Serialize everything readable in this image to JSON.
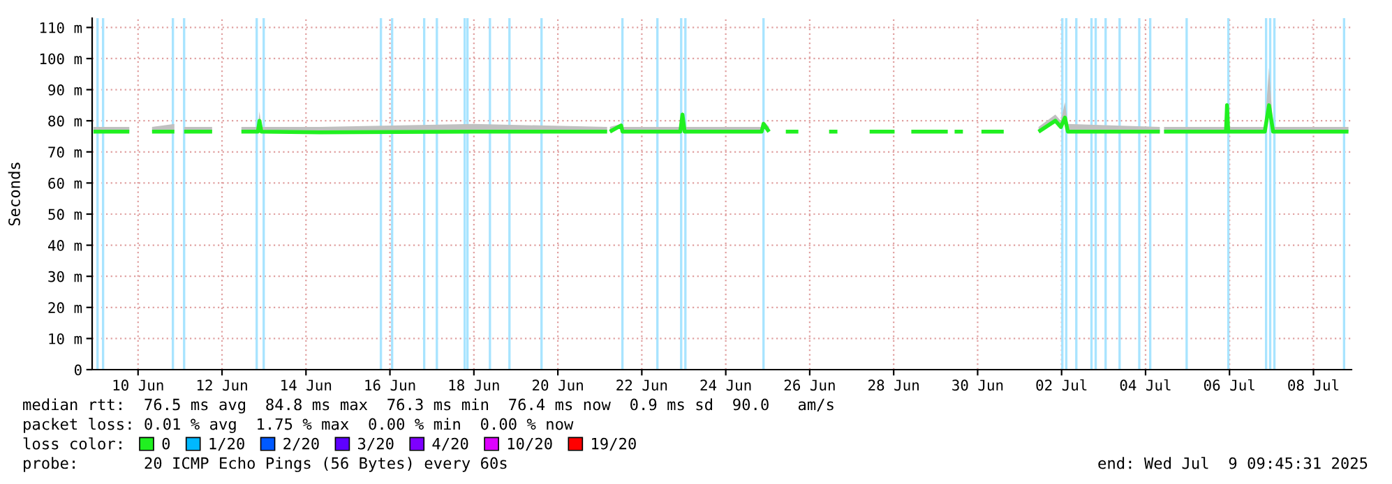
{
  "chart_data": {
    "type": "line",
    "ylabel": "Seconds",
    "ylim": [
      0,
      113
    ],
    "yticks": [
      0,
      {
        "value": 10,
        "label": "10 m"
      },
      {
        "value": 20,
        "label": "20 m"
      },
      {
        "value": 30,
        "label": "30 m"
      },
      {
        "value": 40,
        "label": "40 m"
      },
      {
        "value": 50,
        "label": "50 m"
      },
      {
        "value": 60,
        "label": "60 m"
      },
      {
        "value": 70,
        "label": "70 m"
      },
      {
        "value": 80,
        "label": "80 m"
      },
      {
        "value": 90,
        "label": "90 m"
      },
      {
        "value": 100,
        "label": "100 m"
      },
      {
        "value": 110,
        "label": "110 m"
      }
    ],
    "xlim": [
      "2025-06-09T09:45",
      "2025-07-09T09:45"
    ],
    "xticks": [
      {
        "value": "2025-06-10T12:00",
        "label": "10 Jun"
      },
      {
        "value": "2025-06-12T12:00",
        "label": "12 Jun"
      },
      {
        "value": "2025-06-14T12:00",
        "label": "14 Jun"
      },
      {
        "value": "2025-06-16T12:00",
        "label": "16 Jun"
      },
      {
        "value": "2025-06-18T12:00",
        "label": "18 Jun"
      },
      {
        "value": "2025-06-20T12:00",
        "label": "20 Jun"
      },
      {
        "value": "2025-06-22T12:00",
        "label": "22 Jun"
      },
      {
        "value": "2025-06-24T12:00",
        "label": "24 Jun"
      },
      {
        "value": "2025-06-26T12:00",
        "label": "26 Jun"
      },
      {
        "value": "2025-06-28T12:00",
        "label": "28 Jun"
      },
      {
        "value": "2025-06-30T12:00",
        "label": "30 Jun"
      },
      {
        "value": "2025-07-02T12:00",
        "label": "02 Jul"
      },
      {
        "value": "2025-07-04T12:00",
        "label": "04 Jul"
      },
      {
        "value": "2025-07-06T12:00",
        "label": "06 Jul"
      },
      {
        "value": "2025-07-08T12:00",
        "label": "08 Jul"
      }
    ],
    "grid": true,
    "legend": "bottom",
    "legend_title": "loss color:",
    "x": [
      "2025-06-09T10:30",
      "2025-06-10T07:00",
      "2025-06-10T13:00",
      "2025-06-10T20:00",
      "2025-06-11T08:45",
      "2025-06-11T11:00",
      "2025-06-11T14:20",
      "2025-06-12T06:20",
      "2025-06-12T15:00",
      "2025-06-12T23:05",
      "2025-06-13T08:30",
      "2025-06-13T09:25",
      "2025-06-13T10:30",
      "2025-06-14T19:45",
      "2025-06-18T12:00",
      "2025-06-21T16:10",
      "2025-06-21T17:00",
      "2025-06-21T17:45",
      "2025-06-22T00:10",
      "2025-06-22T01:00",
      "2025-06-23T10:00",
      "2025-06-23T11:15",
      "2025-06-23T12:30",
      "2025-06-25T08:30",
      "2025-06-25T09:35",
      "2025-06-25T12:45",
      "2025-06-25T17:00",
      "2025-06-25T22:20",
      "2025-06-26T05:30",
      "2025-06-26T14:00",
      "2025-06-26T23:05",
      "2025-06-27T03:50",
      "2025-06-27T13:00",
      "2025-06-27T22:15",
      "2025-06-28T12:30",
      "2025-06-28T17:00",
      "2025-06-28T22:05",
      "2025-06-29T18:55",
      "2025-06-29T21:00",
      "2025-06-29T22:50",
      "2025-06-30T03:35",
      "2025-06-30T09:00",
      "2025-06-30T14:10",
      "2025-07-01T02:55",
      "2025-07-01T12:00",
      "2025-07-01T22:50",
      "2025-07-02T08:25",
      "2025-07-02T11:35",
      "2025-07-02T13:55",
      "2025-07-02T15:35",
      "2025-07-04T20:10",
      "2025-07-04T21:30",
      "2025-07-04T22:35",
      "2025-07-06T10:00",
      "2025-07-06T10:35",
      "2025-07-06T11:15",
      "2025-07-07T08:10",
      "2025-07-07T10:35",
      "2025-07-07T12:55",
      "2025-07-09T08:00"
    ],
    "series": [
      {
        "name": "0",
        "color": "#20f020",
        "values": [
          76.5,
          76.5,
          null,
          76.5,
          76.5,
          null,
          76.5,
          76.5,
          null,
          76.5,
          76.5,
          80,
          76.5,
          76.3,
          76.5,
          76.5,
          null,
          76.5,
          78.5,
          76.5,
          76.5,
          82,
          76.5,
          76.5,
          79,
          76.5,
          null,
          76.5,
          76.5,
          null,
          76.5,
          76.5,
          null,
          76.5,
          76.5,
          null,
          76.5,
          76.5,
          null,
          76.5,
          76.5,
          null,
          76.5,
          76.5,
          null,
          76.5,
          80,
          78,
          81,
          76.5,
          76.5,
          null,
          76.5,
          76.5,
          85,
          76.5,
          76.5,
          85,
          76.5,
          76.5
        ],
        "lower": [
          76.5,
          76.5,
          null,
          76.5,
          76.5,
          null,
          76.5,
          76.5,
          null,
          76.5,
          76.5,
          80,
          76.5,
          76.3,
          76.5,
          76.5,
          null,
          76.5,
          78.5,
          76.5,
          76.5,
          82,
          76.5,
          76.5,
          79,
          76.5,
          null,
          null,
          null,
          null,
          null,
          null,
          null,
          null,
          null,
          null,
          null,
          null,
          null,
          null,
          null,
          null,
          null,
          null,
          null,
          76.5,
          80,
          78,
          81,
          76.5,
          76.5,
          null,
          76.5,
          76.5,
          85,
          76.5,
          76.5,
          85,
          76.5,
          76.5
        ],
        "upper": [
          78,
          78,
          null,
          78,
          79,
          null,
          78,
          78,
          null,
          78,
          78,
          83,
          78,
          78,
          79,
          78,
          null,
          78,
          79,
          78,
          78,
          83,
          78,
          78,
          80,
          78,
          null,
          null,
          null,
          null,
          null,
          null,
          null,
          null,
          null,
          null,
          null,
          null,
          null,
          null,
          null,
          null,
          null,
          null,
          null,
          78,
          82,
          80,
          86,
          79,
          78,
          null,
          78,
          78,
          85,
          78,
          78,
          97,
          78,
          78
        ]
      },
      {
        "name": "1/20",
        "color": "#00b8ff",
        "values": [
          null,
          null,
          null,
          null,
          null,
          null,
          null,
          null,
          null,
          null,
          null,
          null,
          null,
          null,
          null,
          null,
          null,
          null,
          null,
          null,
          null,
          null,
          null,
          null,
          null,
          null,
          null,
          null,
          null,
          null,
          null,
          null,
          null,
          null,
          null,
          null,
          null,
          null,
          null,
          null,
          null,
          null,
          null,
          null,
          null,
          null,
          null,
          null,
          null,
          null,
          null,
          null,
          null,
          null,
          null,
          null,
          null,
          null,
          null,
          null
        ]
      },
      {
        "name": "2/20",
        "color": "#0059ff",
        "values": [
          null,
          null,
          null,
          null,
          null,
          null,
          null,
          null,
          null,
          null,
          null,
          null,
          null,
          null,
          null,
          null,
          null,
          null,
          null,
          null,
          null,
          null,
          null,
          null,
          null,
          null,
          null,
          null,
          null,
          null,
          null,
          null,
          null,
          null,
          null,
          null,
          null,
          null,
          null,
          null,
          null,
          null,
          null,
          null,
          null,
          null,
          null,
          null,
          null,
          null,
          null,
          null,
          null,
          null,
          null,
          null,
          null,
          null,
          null,
          null
        ]
      },
      {
        "name": "3/20",
        "color": "#5e00ff",
        "values": [
          null,
          null,
          null,
          null,
          null,
          null,
          null,
          null,
          null,
          null,
          null,
          null,
          null,
          null,
          null,
          null,
          null,
          null,
          null,
          null,
          null,
          null,
          null,
          null,
          null,
          null,
          null,
          null,
          null,
          null,
          null,
          null,
          null,
          null,
          null,
          null,
          null,
          null,
          null,
          null,
          null,
          null,
          null,
          null,
          null,
          null,
          null,
          null,
          null,
          null,
          null,
          null,
          null,
          null,
          null,
          null,
          null,
          null,
          null,
          null
        ]
      },
      {
        "name": "4/20",
        "color": "#7e00ff",
        "values": [
          null,
          null,
          null,
          null,
          null,
          null,
          null,
          null,
          null,
          null,
          null,
          null,
          null,
          null,
          null,
          null,
          null,
          null,
          null,
          null,
          null,
          null,
          null,
          null,
          null,
          null,
          null,
          null,
          null,
          null,
          null,
          null,
          null,
          null,
          null,
          null,
          null,
          null,
          null,
          null,
          null,
          null,
          null,
          null,
          null,
          null,
          null,
          null,
          null,
          null,
          null,
          null,
          null,
          null,
          null,
          null,
          null,
          null,
          null,
          null
        ]
      },
      {
        "name": "10/20",
        "color": "#dd00ff",
        "values": [
          null,
          null,
          null,
          null,
          null,
          null,
          null,
          null,
          null,
          null,
          null,
          null,
          null,
          null,
          null,
          null,
          null,
          null,
          null,
          null,
          null,
          null,
          null,
          null,
          null,
          null,
          null,
          null,
          null,
          null,
          null,
          null,
          null,
          null,
          null,
          null,
          null,
          null,
          null,
          null,
          null,
          null,
          null,
          null,
          null,
          null,
          null,
          null,
          null,
          null,
          null,
          null,
          null,
          null,
          null,
          null,
          null,
          null,
          null,
          null
        ]
      },
      {
        "name": "19/20",
        "color": "#ff0000",
        "values": [
          null,
          null,
          null,
          null,
          null,
          null,
          null,
          null,
          null,
          null,
          null,
          null,
          null,
          null,
          null,
          null,
          null,
          null,
          null,
          null,
          null,
          null,
          null,
          null,
          null,
          null,
          null,
          null,
          null,
          null,
          null,
          null,
          null,
          null,
          null,
          null,
          null,
          null,
          null,
          null,
          null,
          null,
          null,
          null,
          null,
          null,
          null,
          null,
          null,
          null,
          null,
          null,
          null,
          null,
          null,
          null,
          null,
          null,
          null,
          null
        ]
      }
    ],
    "ref_lines": [
      {
        "axis": "x",
        "value": "2025-06-09T12:50",
        "color": "#a8e4ff"
      },
      {
        "axis": "x",
        "value": "2025-06-09T16:00",
        "color": "#a8e4ff"
      },
      {
        "axis": "x",
        "value": "2025-06-11T07:55",
        "color": "#a8e4ff"
      },
      {
        "axis": "x",
        "value": "2025-06-11T14:20",
        "color": "#a8e4ff"
      },
      {
        "axis": "x",
        "value": "2025-06-13T07:50",
        "color": "#a8e4ff"
      },
      {
        "axis": "x",
        "value": "2025-06-13T11:50",
        "color": "#a8e4ff"
      },
      {
        "axis": "x",
        "value": "2025-06-16T06:50",
        "color": "#a8e4ff"
      },
      {
        "axis": "x",
        "value": "2025-06-16T13:15",
        "color": "#a8e4ff"
      },
      {
        "axis": "x",
        "value": "2025-06-17T07:35",
        "color": "#a8e4ff"
      },
      {
        "axis": "x",
        "value": "2025-06-17T14:50",
        "color": "#a8e4ff"
      },
      {
        "axis": "x",
        "value": "2025-06-18T06:45",
        "color": "#a8e4ff"
      },
      {
        "axis": "x",
        "value": "2025-06-18T08:20",
        "color": "#a8e4ff"
      },
      {
        "axis": "x",
        "value": "2025-06-18T21:10",
        "color": "#a8e4ff"
      },
      {
        "axis": "x",
        "value": "2025-06-19T08:20",
        "color": "#a8e4ff"
      },
      {
        "axis": "x",
        "value": "2025-06-20T02:40",
        "color": "#a8e4ff"
      },
      {
        "axis": "x",
        "value": "2025-06-22T00:55",
        "color": "#a8e4ff"
      },
      {
        "axis": "x",
        "value": "2025-06-22T20:55",
        "color": "#a8e4ff"
      },
      {
        "axis": "x",
        "value": "2025-06-23T10:30",
        "color": "#a8e4ff"
      },
      {
        "axis": "x",
        "value": "2025-06-23T12:55",
        "color": "#a8e4ff"
      },
      {
        "axis": "x",
        "value": "2025-06-25T09:35",
        "color": "#a8e4ff"
      },
      {
        "axis": "x",
        "value": "2025-07-02T12:25",
        "color": "#a8e4ff"
      },
      {
        "axis": "x",
        "value": "2025-07-02T14:40",
        "color": "#a8e4ff"
      },
      {
        "axis": "x",
        "value": "2025-07-02T20:25",
        "color": "#a8e4ff"
      },
      {
        "axis": "x",
        "value": "2025-07-03T05:05",
        "color": "#a8e4ff"
      },
      {
        "axis": "x",
        "value": "2025-07-03T07:30",
        "color": "#a8e4ff"
      },
      {
        "axis": "x",
        "value": "2025-07-03T13:10",
        "color": "#a8e4ff"
      },
      {
        "axis": "x",
        "value": "2025-07-03T21:10",
        "color": "#a8e4ff"
      },
      {
        "axis": "x",
        "value": "2025-07-04T08:25",
        "color": "#a8e4ff"
      },
      {
        "axis": "x",
        "value": "2025-07-04T14:40",
        "color": "#a8e4ff"
      },
      {
        "axis": "x",
        "value": "2025-07-05T11:30",
        "color": "#a8e4ff"
      },
      {
        "axis": "x",
        "value": "2025-07-06T11:20",
        "color": "#a8e4ff"
      },
      {
        "axis": "x",
        "value": "2025-07-07T08:55",
        "color": "#a8e4ff"
      },
      {
        "axis": "x",
        "value": "2025-07-07T11:15",
        "color": "#a8e4ff"
      },
      {
        "axis": "x",
        "value": "2025-07-07T13:40",
        "color": "#a8e4ff"
      },
      {
        "axis": "x",
        "value": "2025-07-09T05:30",
        "color": "#a8e4ff"
      }
    ],
    "annotations": [
      "median rtt:  76.5 ms avg  84.8 ms max  76.3 ms min  76.4 ms now  0.9 ms sd  90.0   am/s",
      "packet loss: 0.01 % avg  1.75 % max  0.00 % min  0.00 % now",
      "probe:       20 ICMP Echo Pings (56 Bytes) every 60s",
      "end: Wed Jul  9 09:45:31 2025"
    ]
  }
}
